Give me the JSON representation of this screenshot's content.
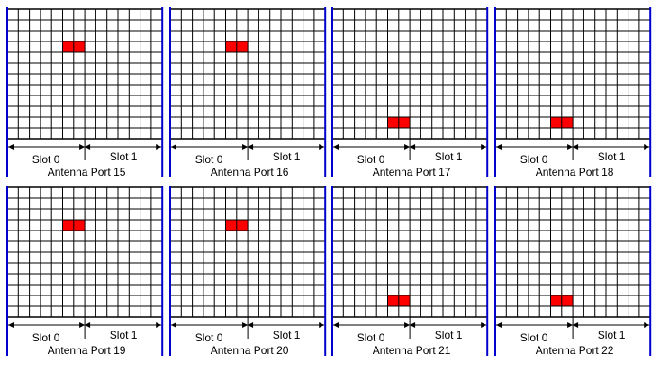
{
  "slot0_label": "Slot 0",
  "slot1_label": "Slot 1",
  "colors": {
    "grid": "#000000",
    "boundary": "#0000cc",
    "resource_element": "#ff0000"
  },
  "panels": [
    {
      "port_label": "Antenna Port 15",
      "re_row": 3,
      "re_cols": [
        5,
        6
      ]
    },
    {
      "port_label": "Antenna Port 16",
      "re_row": 3,
      "re_cols": [
        5,
        6
      ]
    },
    {
      "port_label": "Antenna Port 17",
      "re_row": 10,
      "re_cols": [
        5,
        6
      ]
    },
    {
      "port_label": "Antenna Port 18",
      "re_row": 10,
      "re_cols": [
        5,
        6
      ]
    },
    {
      "port_label": "Antenna Port 19",
      "re_row": 3,
      "re_cols": [
        5,
        6
      ]
    },
    {
      "port_label": "Antenna Port 20",
      "re_row": 3,
      "re_cols": [
        5,
        6
      ]
    },
    {
      "port_label": "Antenna Port 21",
      "re_row": 10,
      "re_cols": [
        5,
        6
      ]
    },
    {
      "port_label": "Antenna Port 22",
      "re_row": 10,
      "re_cols": [
        5,
        6
      ]
    }
  ]
}
